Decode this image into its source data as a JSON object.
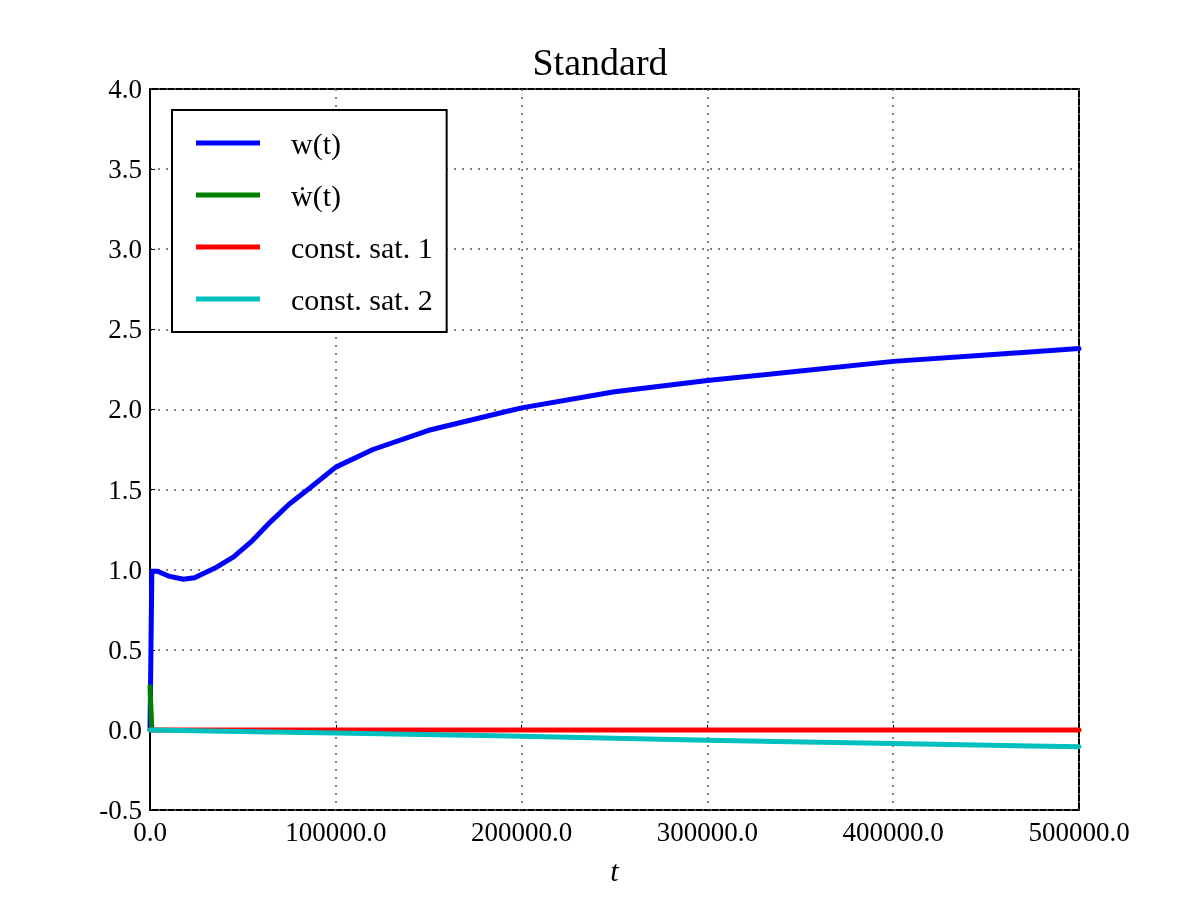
{
  "chart_data": {
    "type": "line",
    "title": "Standard",
    "xlabel": "t",
    "xlim": [
      0,
      500000
    ],
    "xticks": [
      {
        "value": 0,
        "label": "0.0"
      },
      {
        "value": 100000,
        "label": "100000.0"
      },
      {
        "value": 200000,
        "label": "200000.0"
      },
      {
        "value": 300000,
        "label": "300000.0"
      },
      {
        "value": 400000,
        "label": "400000.0"
      },
      {
        "value": 500000,
        "label": "500000.0"
      }
    ],
    "ylim": [
      -0.5,
      4
    ],
    "yticks": [
      {
        "value": -0.5,
        "label": "-0.5"
      },
      {
        "value": 0,
        "label": "0.0"
      },
      {
        "value": 0.5,
        "label": "0.5"
      },
      {
        "value": 1,
        "label": "1.0"
      },
      {
        "value": 1.5,
        "label": "1.5"
      },
      {
        "value": 2,
        "label": "2.0"
      },
      {
        "value": 2.5,
        "label": "2.5"
      },
      {
        "value": 3,
        "label": "3.0"
      },
      {
        "value": 3.5,
        "label": "3.5"
      },
      {
        "value": 4,
        "label": "4.0"
      }
    ],
    "grid": true,
    "legend": "top left",
    "marker": "none",
    "line_style": "solid",
    "series": [
      {
        "name": "w(t)",
        "color": "#0000ff",
        "x": [
          0,
          1000,
          4000,
          10000,
          18000,
          24000,
          35000,
          45000,
          55000,
          65000,
          75000,
          85000,
          100000,
          120000,
          150000,
          200000,
          250000,
          300000,
          350000,
          400000,
          450000,
          500000
        ],
        "values": [
          0,
          0.99,
          0.99,
          0.96,
          0.94,
          0.95,
          1.01,
          1.08,
          1.18,
          1.3,
          1.41,
          1.5,
          1.64,
          1.75,
          1.87,
          2.01,
          2.11,
          2.18,
          2.24,
          2.3,
          2.34,
          2.38
        ]
      },
      {
        "name": "ẇ(t)",
        "color": "#008000",
        "x": [
          0,
          1000
        ],
        "values": [
          0.27,
          0
        ]
      },
      {
        "name": "const. sat. 1",
        "color": "#ff0000",
        "x": [
          0,
          500000
        ],
        "values": [
          0,
          0
        ]
      },
      {
        "name": "const. sat. 2",
        "color": "#00bfbf",
        "x": [
          0,
          100000,
          200000,
          300000,
          400000,
          500000
        ],
        "values": [
          0,
          -0.02,
          -0.04,
          -0.065,
          -0.085,
          -0.105
        ]
      }
    ]
  }
}
